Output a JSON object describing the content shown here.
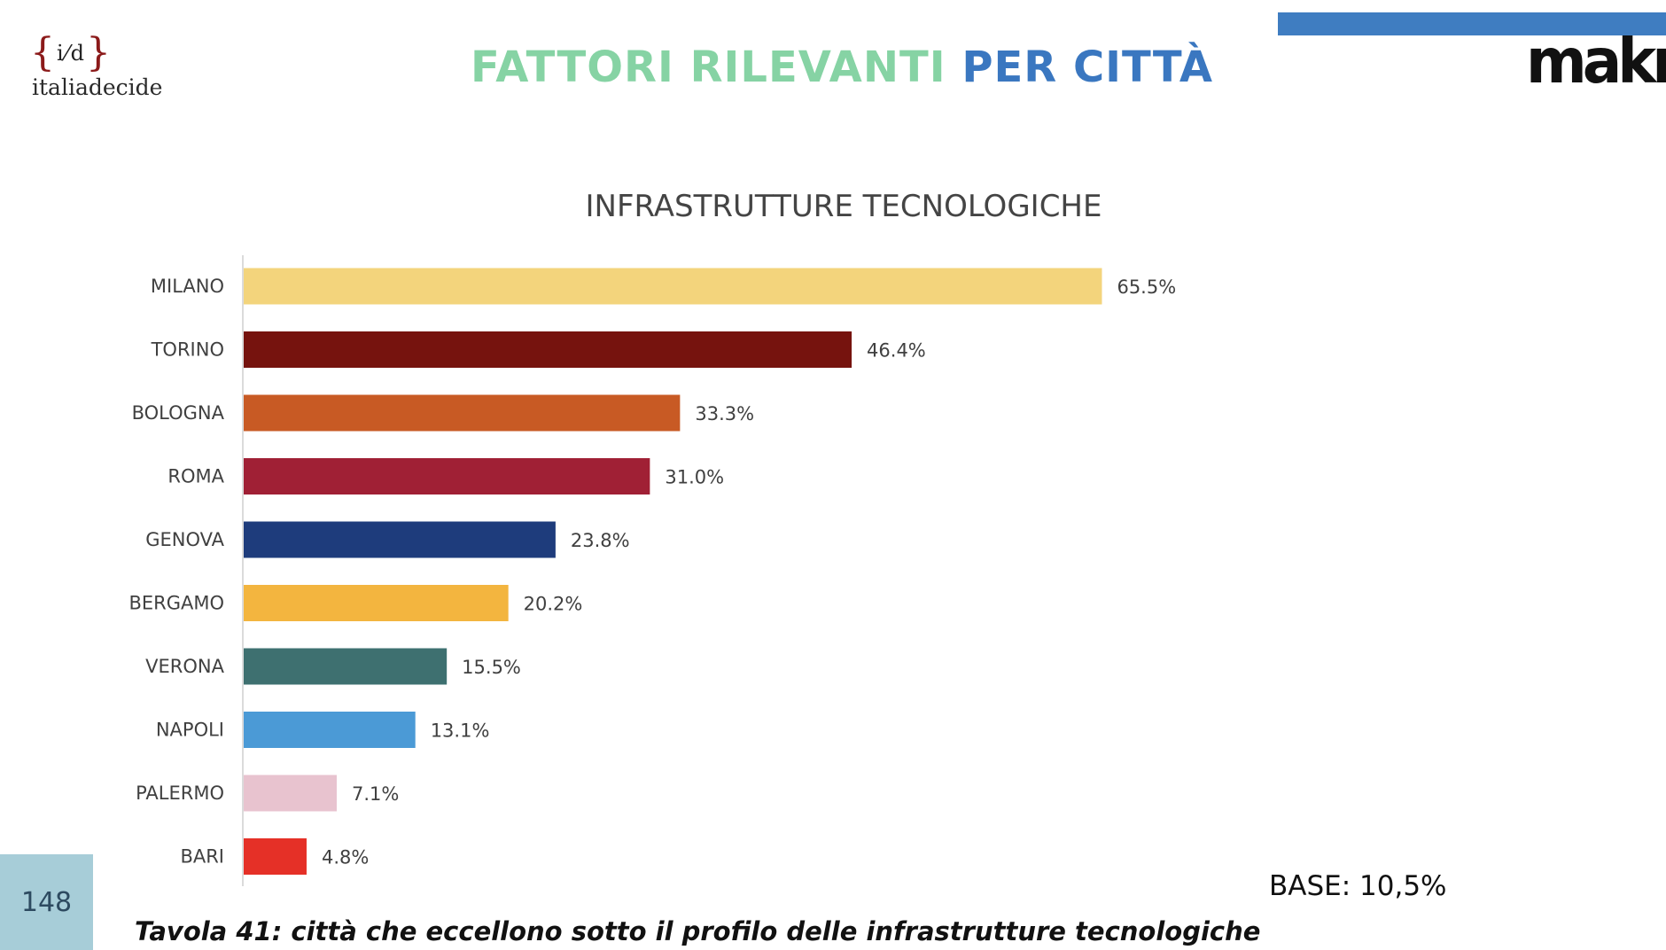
{
  "header": {
    "logo_mark_outer_left": "{",
    "logo_mark_inner": "i⁄d",
    "logo_mark_outer_right": "}",
    "logo_text": "italiadecide",
    "title_part1": "FATTORI RILEVANTI",
    "title_part2": "PER CITTÀ",
    "right_logo_text": "makno"
  },
  "colors": {
    "title_green": "#86d3a4",
    "title_blue": "#3a77c0",
    "top_bar": "#3f7dc1"
  },
  "chart_data": {
    "type": "bar",
    "orientation": "horizontal",
    "title": "INFRASTRUTTURE TECNOLOGICHE",
    "categories": [
      "MILANO",
      "TORINO",
      "BOLOGNA",
      "ROMA",
      "GENOVA",
      "BERGAMO",
      "VERONA",
      "NAPOLI",
      "PALERMO",
      "BARI"
    ],
    "values": [
      65.5,
      46.4,
      33.3,
      31.0,
      23.8,
      20.2,
      15.5,
      13.1,
      7.1,
      4.8
    ],
    "value_labels": [
      "65.5%",
      "46.4%",
      "33.3%",
      "31.0%",
      "23.8%",
      "20.2%",
      "15.5%",
      "13.1%",
      "7.1%",
      "4.8%"
    ],
    "bar_colors": [
      "#f3d47c",
      "#76130e",
      "#c85a24",
      "#a02035",
      "#1e3c7c",
      "#f3b53f",
      "#3e7070",
      "#4b9ad6",
      "#e8c3cf",
      "#e53027"
    ],
    "xlim": [
      0,
      70
    ],
    "unit": "%",
    "grid": false,
    "legend": "none"
  },
  "footer": {
    "page_number": "148",
    "base": "BASE: 10,5%",
    "caption": "Tavola 41: città che eccellono sotto il profilo delle infrastrutture tecnologiche"
  }
}
